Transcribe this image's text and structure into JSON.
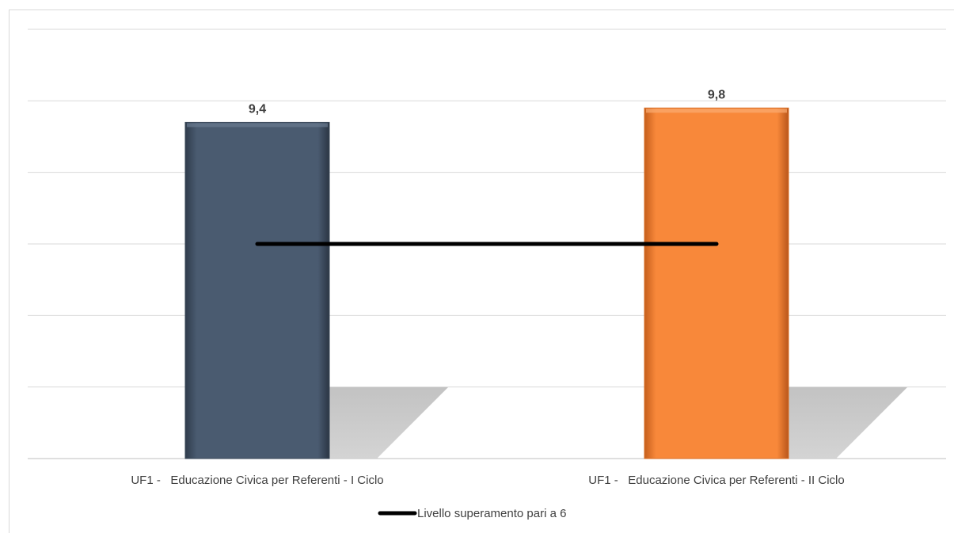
{
  "chart_data": {
    "type": "bar",
    "title": "",
    "xlabel": "",
    "ylabel": "",
    "categories": [
      "UF1 -   Educazione Civica per Referenti - I Ciclo",
      "UF1 -   Educazione Civica per Referenti - II Ciclo"
    ],
    "values": [
      9.4,
      9.8
    ],
    "value_labels": [
      "9,4",
      "9,8"
    ],
    "bar_colors": [
      "#4a5b70",
      "#f8883a"
    ],
    "ylim": [
      0,
      12
    ],
    "y_gridlines": [
      0,
      2,
      4,
      6,
      8,
      10,
      12
    ],
    "y_tick_labels_shown": false,
    "grid": true,
    "reference_line": {
      "name": "Livello superamento pari a  6",
      "value": 6,
      "color": "#000000"
    },
    "legend": {
      "position": "bottom",
      "entries": [
        "Livello superamento pari a  6"
      ]
    }
  }
}
